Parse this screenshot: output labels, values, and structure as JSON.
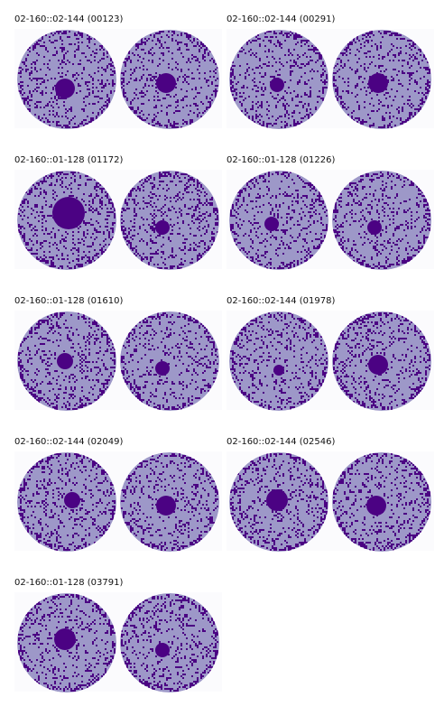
{
  "colors": {
    "fill": "#9d98c8",
    "speckle": "#4b0283",
    "spot": "#4b0283",
    "background": "#fbfbfd"
  },
  "panels": [
    {
      "label": "02-160::02-144 (00123)"
    },
    {
      "label": "02-160::02-144 (00291)"
    },
    {
      "label": "02-160::01-128 (01172)"
    },
    {
      "label": "02-160::01-128 (01226)"
    },
    {
      "label": "02-160::01-128 (01610)"
    },
    {
      "label": "02-160::02-144 (01978)"
    },
    {
      "label": "02-160::02-144 (02049)"
    },
    {
      "label": "02-160::02-144 (02546)"
    },
    {
      "label": "02-160::01-128 (03791)"
    }
  ]
}
